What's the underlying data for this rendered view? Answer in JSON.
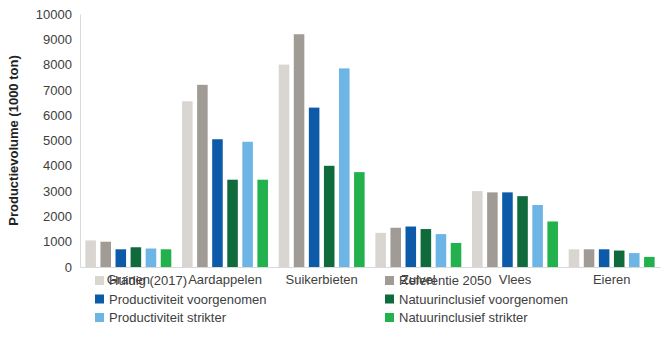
{
  "chart_data": {
    "type": "bar",
    "y_label": "Productievolume (1000 ton)",
    "categories": [
      "Granen",
      "Aardappelen",
      "Suikerbieten",
      "Zuivel",
      "Vlees",
      "Eieren"
    ],
    "series": [
      {
        "name": "Huidig (2017)",
        "color": "#d9d5d1",
        "values": [
          1050,
          6550,
          8000,
          1350,
          3000,
          700
        ]
      },
      {
        "name": "Referentie 2050",
        "color": "#a19b96",
        "values": [
          1000,
          7200,
          9200,
          1550,
          2950,
          700
        ]
      },
      {
        "name": "Productiviteit voorgenomen",
        "color": "#0d5ba8",
        "values": [
          700,
          5050,
          6300,
          1600,
          2950,
          700
        ]
      },
      {
        "name": "Natuurinclusief voorgenomen",
        "color": "#0f6b3b",
        "values": [
          780,
          3450,
          4000,
          1500,
          2800,
          650
        ]
      },
      {
        "name": "Productiviteit strikter",
        "color": "#6db5e5",
        "values": [
          730,
          4950,
          7850,
          1300,
          2450,
          550
        ]
      },
      {
        "name": "Natuurinclusief strikter",
        "color": "#23b14d",
        "values": [
          700,
          3450,
          3750,
          950,
          1800,
          400
        ]
      }
    ],
    "ylim": [
      0,
      10000
    ],
    "yticks": [
      0,
      1000,
      2000,
      3000,
      4000,
      5000,
      6000,
      7000,
      8000,
      9000,
      10000
    ],
    "grid": false,
    "legend": "bottom"
  }
}
